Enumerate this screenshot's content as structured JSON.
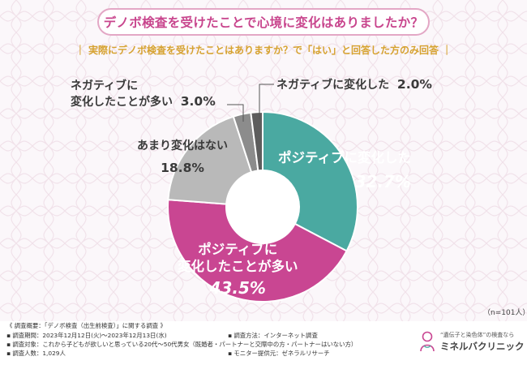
{
  "title": "デノボ検査を受けたことで心境に変化はありましたか？",
  "subtitle": "｜ 実際にデノボ検査を受けたことはありますか？で「はい」と回答した方のみ回答 ｜",
  "sample_size": "（n=101人）",
  "chart_data": {
    "type": "pie",
    "title": "デノボ検査を受けたことで心境に変化はありましたか？",
    "slices": [
      {
        "label": "ポジティブに変化した",
        "value": 32.7,
        "display": "32.7%",
        "color": "#4aa9a1"
      },
      {
        "label": "ポジティブに変化したことが多い",
        "label_lines": [
          "ポジティブに",
          "変化したことが多い"
        ],
        "value": 43.5,
        "display": "43.5%",
        "color": "#c94692"
      },
      {
        "label": "あまり変化はない",
        "value": 18.8,
        "display": "18.8%",
        "color": "#b9b9b9"
      },
      {
        "label": "ネガティブに変化したことが多い",
        "label_lines": [
          "ネガティブに",
          "変化したことが多い"
        ],
        "value": 3.0,
        "display": "3.0%",
        "color": "#8c8c8c"
      },
      {
        "label": "ネガティブに変化した",
        "value": 2.0,
        "display": "2.0%",
        "color": "#5d5d5d"
      }
    ]
  },
  "footer": {
    "overview": "《 調査概要：「デノボ検査（出生前検査）」に関する調査 》",
    "period": "調査期間：2023年12月12日(火)〜2023年12月13日(水)",
    "target": "調査対象：これから子どもが欲しいと思っている20代〜50代男女（既婚者・パートナーと交際中の方・パートナーはいない方）",
    "count": "調査人数：1,029人",
    "method": "調査方法：インターネット調査",
    "provider": "モニター提供元：ゼネラルリサーチ",
    "logo_tagline": "“遺伝子と染色体”の検査なら",
    "logo_name": "ミネルバクリニック"
  }
}
